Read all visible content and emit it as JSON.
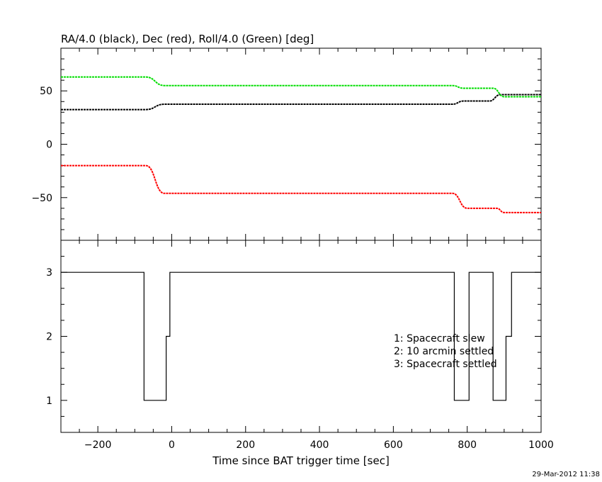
{
  "timestamp": "29-Mar-2012 11:38",
  "colors": {
    "ra": "#000000",
    "dec": "#ff0000",
    "roll": "#00dd00",
    "axis": "#000000"
  },
  "chart_data": [
    {
      "type": "line",
      "title": "RA/4.0 (black), Dec (red), Roll/4.0 (Green) [deg]",
      "xlim": [
        -300,
        1000
      ],
      "ylim": [
        -90,
        90
      ],
      "y_ticks": [
        -50,
        0,
        50
      ],
      "series": [
        {
          "color": "#000000",
          "shape": "smooth",
          "x": [
            -300,
            -70,
            -20,
            760,
            790,
            860,
            890,
            1000
          ],
          "y": [
            32.5,
            32.5,
            37.5,
            37.5,
            40.5,
            40.5,
            46.5,
            46.5
          ]
        },
        {
          "color": "#ff0000",
          "shape": "smooth",
          "x": [
            -300,
            -70,
            -20,
            760,
            800,
            880,
            900,
            1000
          ],
          "y": [
            -20,
            -20,
            -46,
            -46,
            -60,
            -60,
            -64,
            -64
          ]
        },
        {
          "color": "#00dd00",
          "shape": "smooth",
          "x": [
            -300,
            -70,
            -20,
            760,
            790,
            870,
            900,
            1000
          ],
          "y": [
            63,
            63,
            55,
            55,
            52.5,
            52.5,
            44.5,
            44.5
          ]
        }
      ]
    },
    {
      "type": "line",
      "xlabel": "Time since BAT trigger time [sec]",
      "xlim": [
        -300,
        1000
      ],
      "ylim": [
        0.5,
        3.5
      ],
      "x_ticks": [
        -200,
        0,
        200,
        400,
        600,
        800,
        1000
      ],
      "y_ticks": [
        1,
        2,
        3
      ],
      "series": [
        {
          "color": "#000000",
          "shape": "step",
          "x": [
            -300,
            -75,
            -75,
            -15,
            -15,
            -5,
            -5,
            765,
            765,
            805,
            805,
            815,
            815,
            870,
            870,
            870,
            870,
            905,
            905,
            910,
            910,
            920,
            920,
            1000
          ],
          "y": [
            3,
            3,
            1,
            1,
            2,
            2,
            3,
            3,
            1,
            1,
            3,
            3,
            3,
            3,
            1,
            1,
            1,
            1,
            2,
            2,
            2,
            2,
            3,
            3
          ]
        }
      ],
      "legend": [
        "1: Spacecraft slew",
        "2: 10 arcmin settled",
        "3: Spacecraft settled"
      ]
    }
  ]
}
